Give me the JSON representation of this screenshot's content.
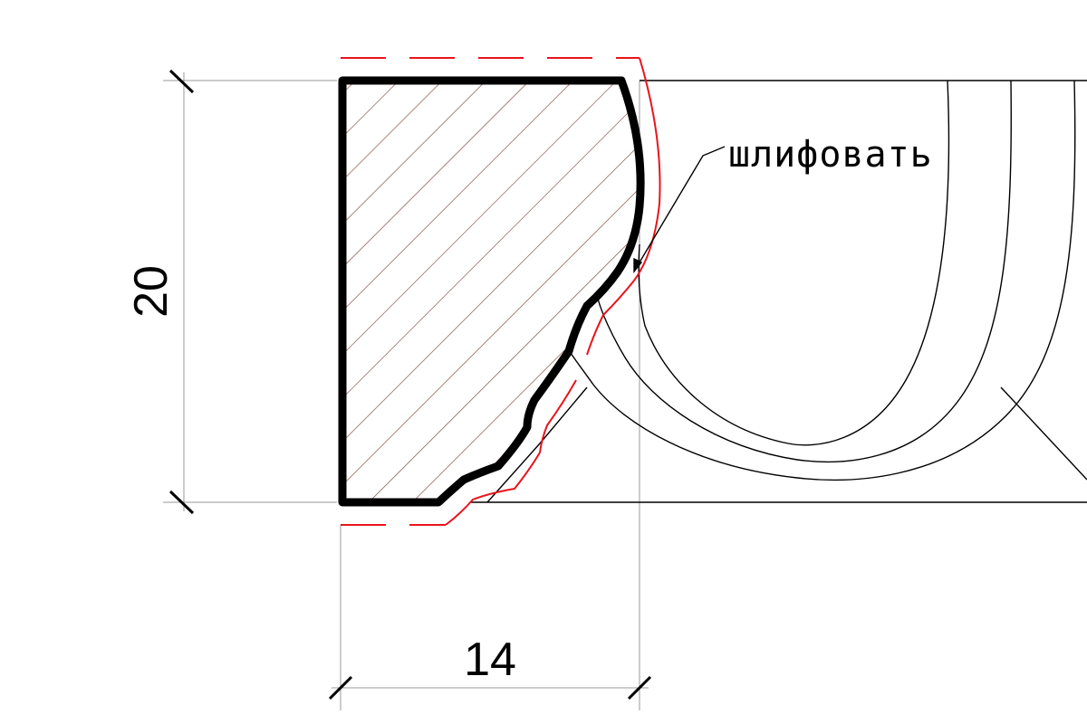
{
  "drawing": {
    "dimensions": {
      "height": "20",
      "width": "14"
    },
    "callout": {
      "text": "шлифовать"
    },
    "colors": {
      "profile_outline": "#000000",
      "hatch": "#7a4a3c",
      "allowance_line": "#e8141c",
      "construction_line": "#000000",
      "extension_line": "#999999",
      "background": "#ffffff"
    }
  }
}
